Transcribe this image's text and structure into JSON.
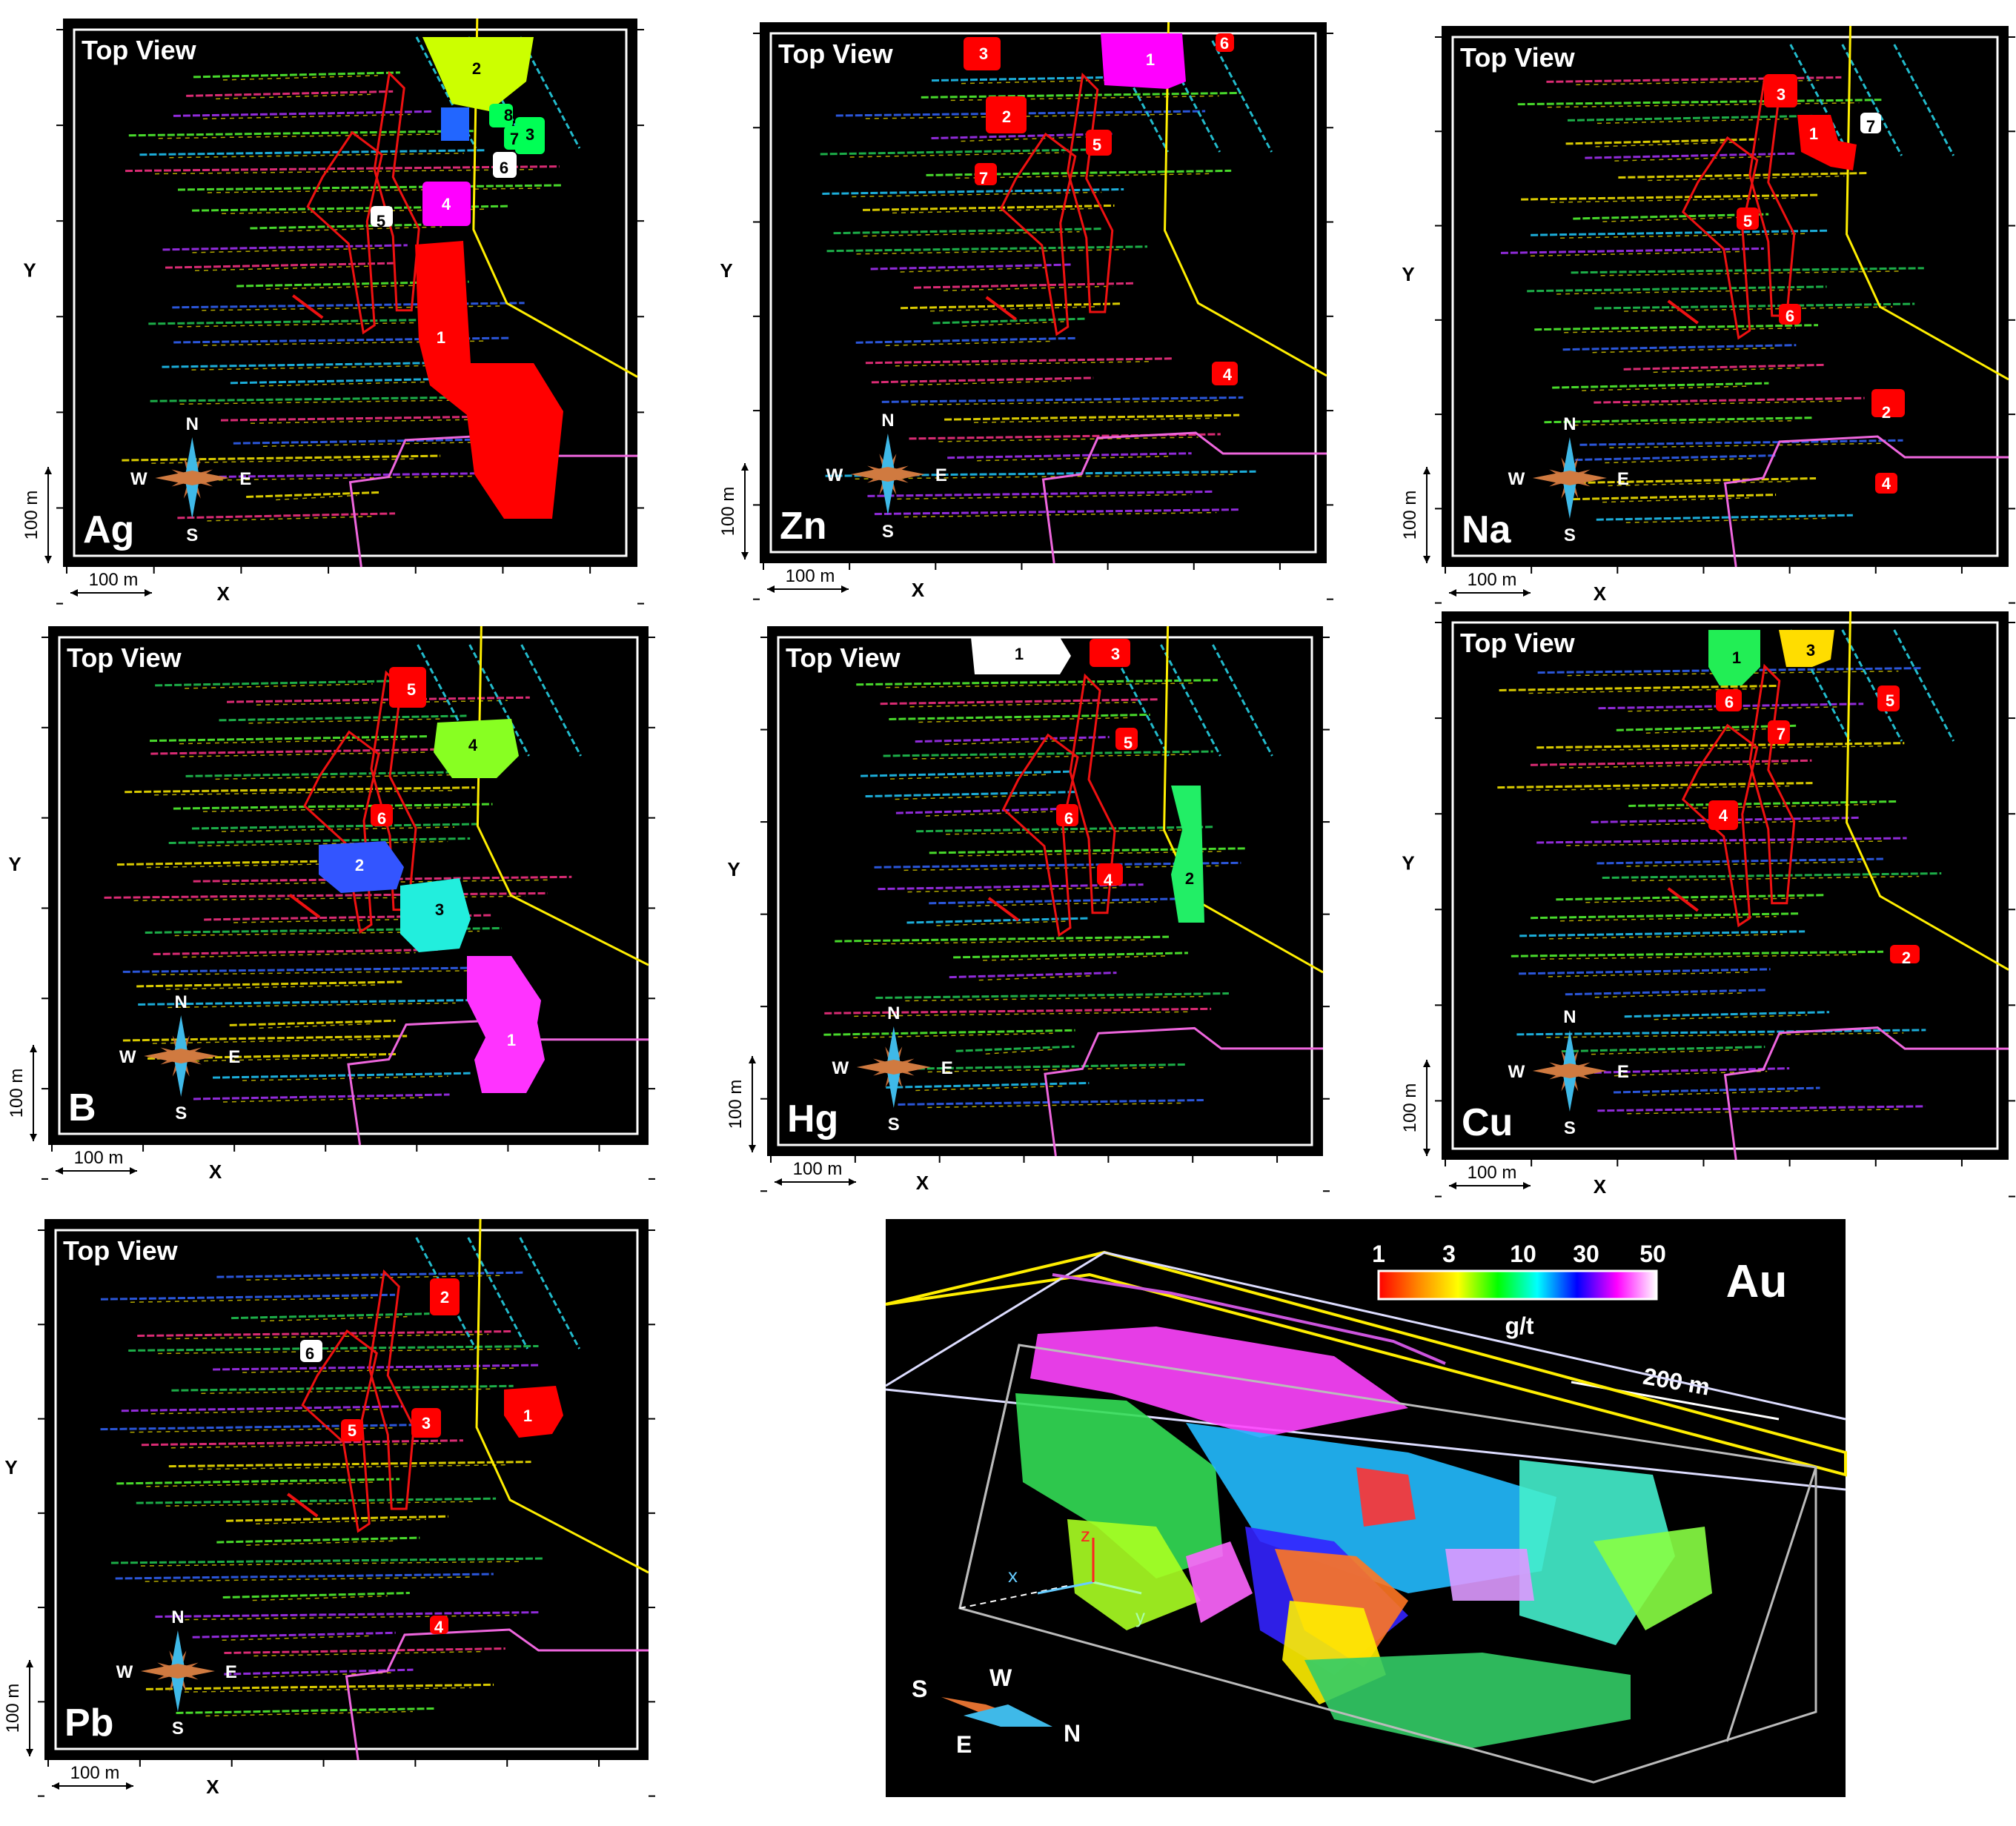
{
  "panels": [
    {
      "element": "Ag",
      "view_label": "Top View",
      "y_label": "Y",
      "x_label": "X",
      "scale_x": "100 m",
      "scale_y": "100 m",
      "compass": {
        "n": "N",
        "s": "S",
        "e": "E",
        "w": "W"
      },
      "zones": [
        {
          "label": "1",
          "color": "#ff0000"
        },
        {
          "label": "2",
          "color": "#ccff00"
        },
        {
          "label": "3",
          "color": "#00ff55"
        },
        {
          "label": "4",
          "color": "#ff00ff"
        },
        {
          "label": "5",
          "color": "#ffffff"
        },
        {
          "label": "6",
          "color": "#ffffff"
        },
        {
          "label": "7",
          "color": "#00ff55"
        },
        {
          "label": "8",
          "color": "#00ff55"
        }
      ]
    },
    {
      "element": "Zn",
      "view_label": "Top View",
      "y_label": "Y",
      "x_label": "X",
      "scale_x": "100 m",
      "scale_y": "100 m",
      "compass": {
        "n": "N",
        "s": "S",
        "e": "E",
        "w": "W"
      },
      "zones": [
        {
          "label": "1",
          "color": "#ff00ff"
        },
        {
          "label": "2",
          "color": "#ff0000"
        },
        {
          "label": "3",
          "color": "#ff0000"
        },
        {
          "label": "4",
          "color": "#ff0000"
        },
        {
          "label": "5",
          "color": "#ff0000"
        },
        {
          "label": "6",
          "color": "#ff0000"
        },
        {
          "label": "7",
          "color": "#ff0000"
        }
      ]
    },
    {
      "element": "Na",
      "view_label": "Top View",
      "y_label": "Y",
      "x_label": "X",
      "scale_x": "100 m",
      "scale_y": "100 m",
      "compass": {
        "n": "N",
        "s": "S",
        "e": "E",
        "w": "W"
      },
      "zones": [
        {
          "label": "1",
          "color": "#ff0000"
        },
        {
          "label": "2",
          "color": "#ff0000"
        },
        {
          "label": "3",
          "color": "#ff0000"
        },
        {
          "label": "4",
          "color": "#ff0000"
        },
        {
          "label": "5",
          "color": "#ff0000"
        },
        {
          "label": "6",
          "color": "#ff0000"
        },
        {
          "label": "7",
          "color": "#ffffff"
        }
      ]
    },
    {
      "element": "B",
      "view_label": "Top View",
      "y_label": "Y",
      "x_label": "X",
      "scale_x": "100 m",
      "scale_y": "100 m",
      "compass": {
        "n": "N",
        "s": "S",
        "e": "E",
        "w": "W"
      },
      "zones": [
        {
          "label": "1",
          "color": "#ff33ff"
        },
        {
          "label": "2",
          "color": "#3355ff"
        },
        {
          "label": "3",
          "color": "#22eedd"
        },
        {
          "label": "4",
          "color": "#88ff22"
        },
        {
          "label": "5",
          "color": "#ff0000"
        },
        {
          "label": "6",
          "color": "#ff0000"
        }
      ]
    },
    {
      "element": "Hg",
      "view_label": "Top View",
      "y_label": "Y",
      "x_label": "X",
      "scale_x": "100 m",
      "scale_y": "100 m",
      "compass": {
        "n": "N",
        "s": "S",
        "e": "E",
        "w": "W"
      },
      "zones": [
        {
          "label": "1",
          "color": "#ffffff"
        },
        {
          "label": "2",
          "color": "#22ee66"
        },
        {
          "label": "3",
          "color": "#ff0000"
        },
        {
          "label": "4",
          "color": "#ff0000"
        },
        {
          "label": "5",
          "color": "#ff0000"
        },
        {
          "label": "6",
          "color": "#ff0000"
        }
      ]
    },
    {
      "element": "Cu",
      "view_label": "Top View",
      "y_label": "Y",
      "x_label": "X",
      "scale_x": "100 m",
      "scale_y": "100 m",
      "compass": {
        "n": "N",
        "s": "S",
        "e": "E",
        "w": "W"
      },
      "zones": [
        {
          "label": "1",
          "color": "#22ee55"
        },
        {
          "label": "2",
          "color": "#ff0000"
        },
        {
          "label": "3",
          "color": "#ffdd00"
        },
        {
          "label": "4",
          "color": "#ff0000"
        },
        {
          "label": "5",
          "color": "#ff0000"
        },
        {
          "label": "6",
          "color": "#ff0000"
        },
        {
          "label": "7",
          "color": "#ff0000"
        }
      ]
    },
    {
      "element": "Pb",
      "view_label": "Top View",
      "y_label": "Y",
      "x_label": "X",
      "scale_x": "100 m",
      "scale_y": "100 m",
      "compass": {
        "n": "N",
        "s": "S",
        "e": "E",
        "w": "W"
      },
      "zones": [
        {
          "label": "1",
          "color": "#ff0000"
        },
        {
          "label": "2",
          "color": "#ff0000"
        },
        {
          "label": "3",
          "color": "#ff0000"
        },
        {
          "label": "4",
          "color": "#ff0000"
        },
        {
          "label": "5",
          "color": "#ff0000"
        },
        {
          "label": "6",
          "color": "#ffffff"
        }
      ]
    }
  ],
  "au_panel": {
    "element": "Au",
    "colorbar_ticks": [
      "1",
      "3",
      "10",
      "30",
      "50"
    ],
    "colorbar_unit": "g/t",
    "colorbar_colors": [
      "#ff0000",
      "#ff8800",
      "#ffff00",
      "#00ff00",
      "#00ffff",
      "#0000ff",
      "#ff00ff",
      "#ffffff"
    ],
    "scale": "200 m",
    "axes": {
      "x": "x",
      "y": "y",
      "z": "z"
    },
    "compass": {
      "s": "S",
      "w": "W",
      "e": "E",
      "n": "N"
    }
  }
}
